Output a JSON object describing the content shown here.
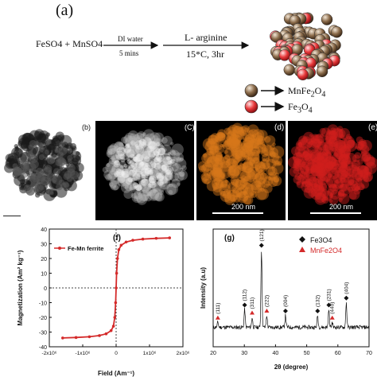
{
  "panel_a": {
    "letter": "(a)",
    "reactants": "FeSO4 + MnSO4",
    "step1_top": "DI water",
    "step1_bottom": "5 mins",
    "step2_top": "L- arginine",
    "step2_bottom": "15*C, 3hr",
    "legend": [
      {
        "label": "MnFe2O4",
        "color": "#8b6b4a"
      },
      {
        "label": "Fe3O4",
        "color": "#e8393b"
      }
    ]
  },
  "micro_panels": {
    "b": {
      "letter": "(b)",
      "scale": ""
    },
    "c": {
      "letter": "(C)"
    },
    "d": {
      "letter": "(d)",
      "scale": "200 nm",
      "color": "#d8781a"
    },
    "e": {
      "letter": "(e)",
      "scale": "200 nm",
      "color": "#d0201c"
    }
  },
  "chart_data": [
    {
      "type": "line",
      "panel": "(f)",
      "series": [
        {
          "name": "Fe-Mn ferrite",
          "color": "#d42a2a",
          "x": [
            -1600000,
            -1200000,
            -800000,
            -500000,
            -300000,
            -150000,
            -80000,
            -40000,
            -15000,
            0,
            15000,
            40000,
            80000,
            150000,
            300000,
            500000,
            800000,
            1200000,
            1600000
          ],
          "y": [
            -34,
            -33.7,
            -33.2,
            -32.4,
            -31.2,
            -29,
            -26,
            -20,
            -10,
            0,
            10,
            20,
            26,
            29,
            31.2,
            32.4,
            33.2,
            33.7,
            34
          ]
        }
      ],
      "xlabel": "Field (Am⁻¹)",
      "ylabel": "Magnetization (Am² kg⁻¹)",
      "xlim": [
        -2000000,
        2000000
      ],
      "ylim": [
        -40,
        40
      ],
      "xticks": [
        -2000000,
        -1000000,
        0,
        1000000,
        2000000
      ],
      "xtick_labels": [
        "-2x10⁶",
        "-1x10⁶",
        "0",
        "1x10⁶",
        "2x10⁶"
      ],
      "yticks": [
        -40,
        -30,
        -20,
        -10,
        0,
        10,
        20,
        30,
        40
      ],
      "ytick_labels": [
        "-40",
        "-30",
        "-20",
        "-10",
        "0",
        "10",
        "20",
        "30",
        "40"
      ],
      "legend_position": "top-left"
    },
    {
      "type": "line",
      "panel": "(g)",
      "series": [
        {
          "name": "",
          "color": "#111111"
        }
      ],
      "xlabel": "2θ (degree)",
      "ylabel": "Intensity (a.u)",
      "xlim": [
        20,
        70
      ],
      "xticks": [
        20,
        30,
        40,
        50,
        60,
        70
      ],
      "legend": [
        {
          "label": "Fe3O4",
          "marker": "diamond",
          "color": "#111111"
        },
        {
          "label": "MnFe2O4",
          "marker": "triangle",
          "color": "#d42a2a"
        }
      ],
      "peaks": [
        {
          "x": 21.5,
          "h": 0.05,
          "label": "(111)",
          "marker": "triangle"
        },
        {
          "x": 30.1,
          "h": 0.18,
          "label": "(112)",
          "marker": "diamond"
        },
        {
          "x": 32.5,
          "h": 0.1,
          "label": "(311)",
          "marker": "triangle"
        },
        {
          "x": 35.5,
          "h": 0.78,
          "label": "(121)",
          "marker": "diamond"
        },
        {
          "x": 37.2,
          "h": 0.12,
          "label": "(222)",
          "marker": "triangle"
        },
        {
          "x": 43.2,
          "h": 0.12,
          "label": "(004)",
          "marker": "diamond"
        },
        {
          "x": 53.5,
          "h": 0.12,
          "label": "(132)",
          "marker": "diamond"
        },
        {
          "x": 57.1,
          "h": 0.18,
          "label": "(231)",
          "marker": "diamond"
        },
        {
          "x": 58.2,
          "h": 0.05,
          "label": "(440)",
          "marker": "triangle"
        },
        {
          "x": 62.7,
          "h": 0.25,
          "label": "(404)",
          "marker": "diamond"
        }
      ]
    }
  ]
}
